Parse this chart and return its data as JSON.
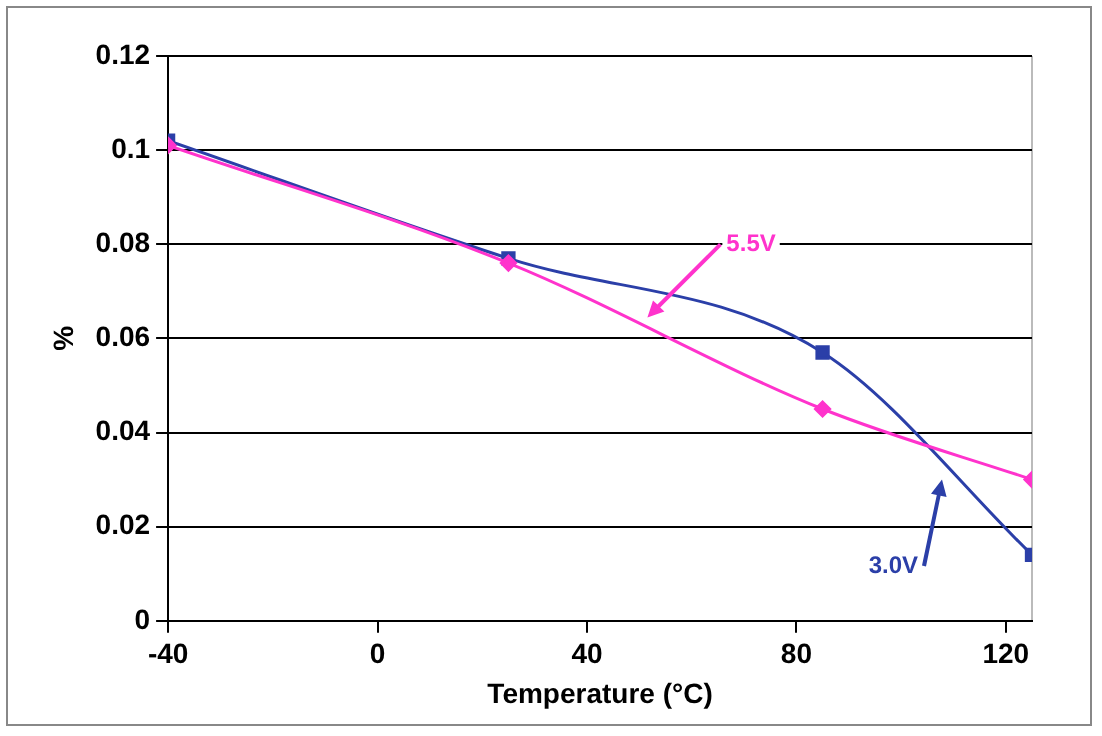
{
  "chart_data": {
    "type": "line",
    "xlabel": "Temperature (°C)",
    "ylabel": "%",
    "x": [
      -40,
      25,
      85,
      125
    ],
    "series": [
      {
        "name": "5.5V",
        "color": "#ff33cc",
        "marker": "diamond",
        "values": [
          0.101,
          0.076,
          0.045,
          0.03
        ]
      },
      {
        "name": "3.0V",
        "color": "#2b3fa8",
        "marker": "square",
        "values": [
          0.102,
          0.077,
          0.057,
          0.014
        ]
      }
    ],
    "xlim": [
      -40,
      125
    ],
    "xticks": [
      -40,
      0,
      40,
      80,
      120
    ],
    "ylim": [
      0,
      0.12
    ],
    "yticks": [
      0,
      0.02,
      0.04,
      0.06,
      0.08,
      0.1,
      0.12
    ],
    "grid": "y",
    "legend": false,
    "line_style": "solid"
  }
}
